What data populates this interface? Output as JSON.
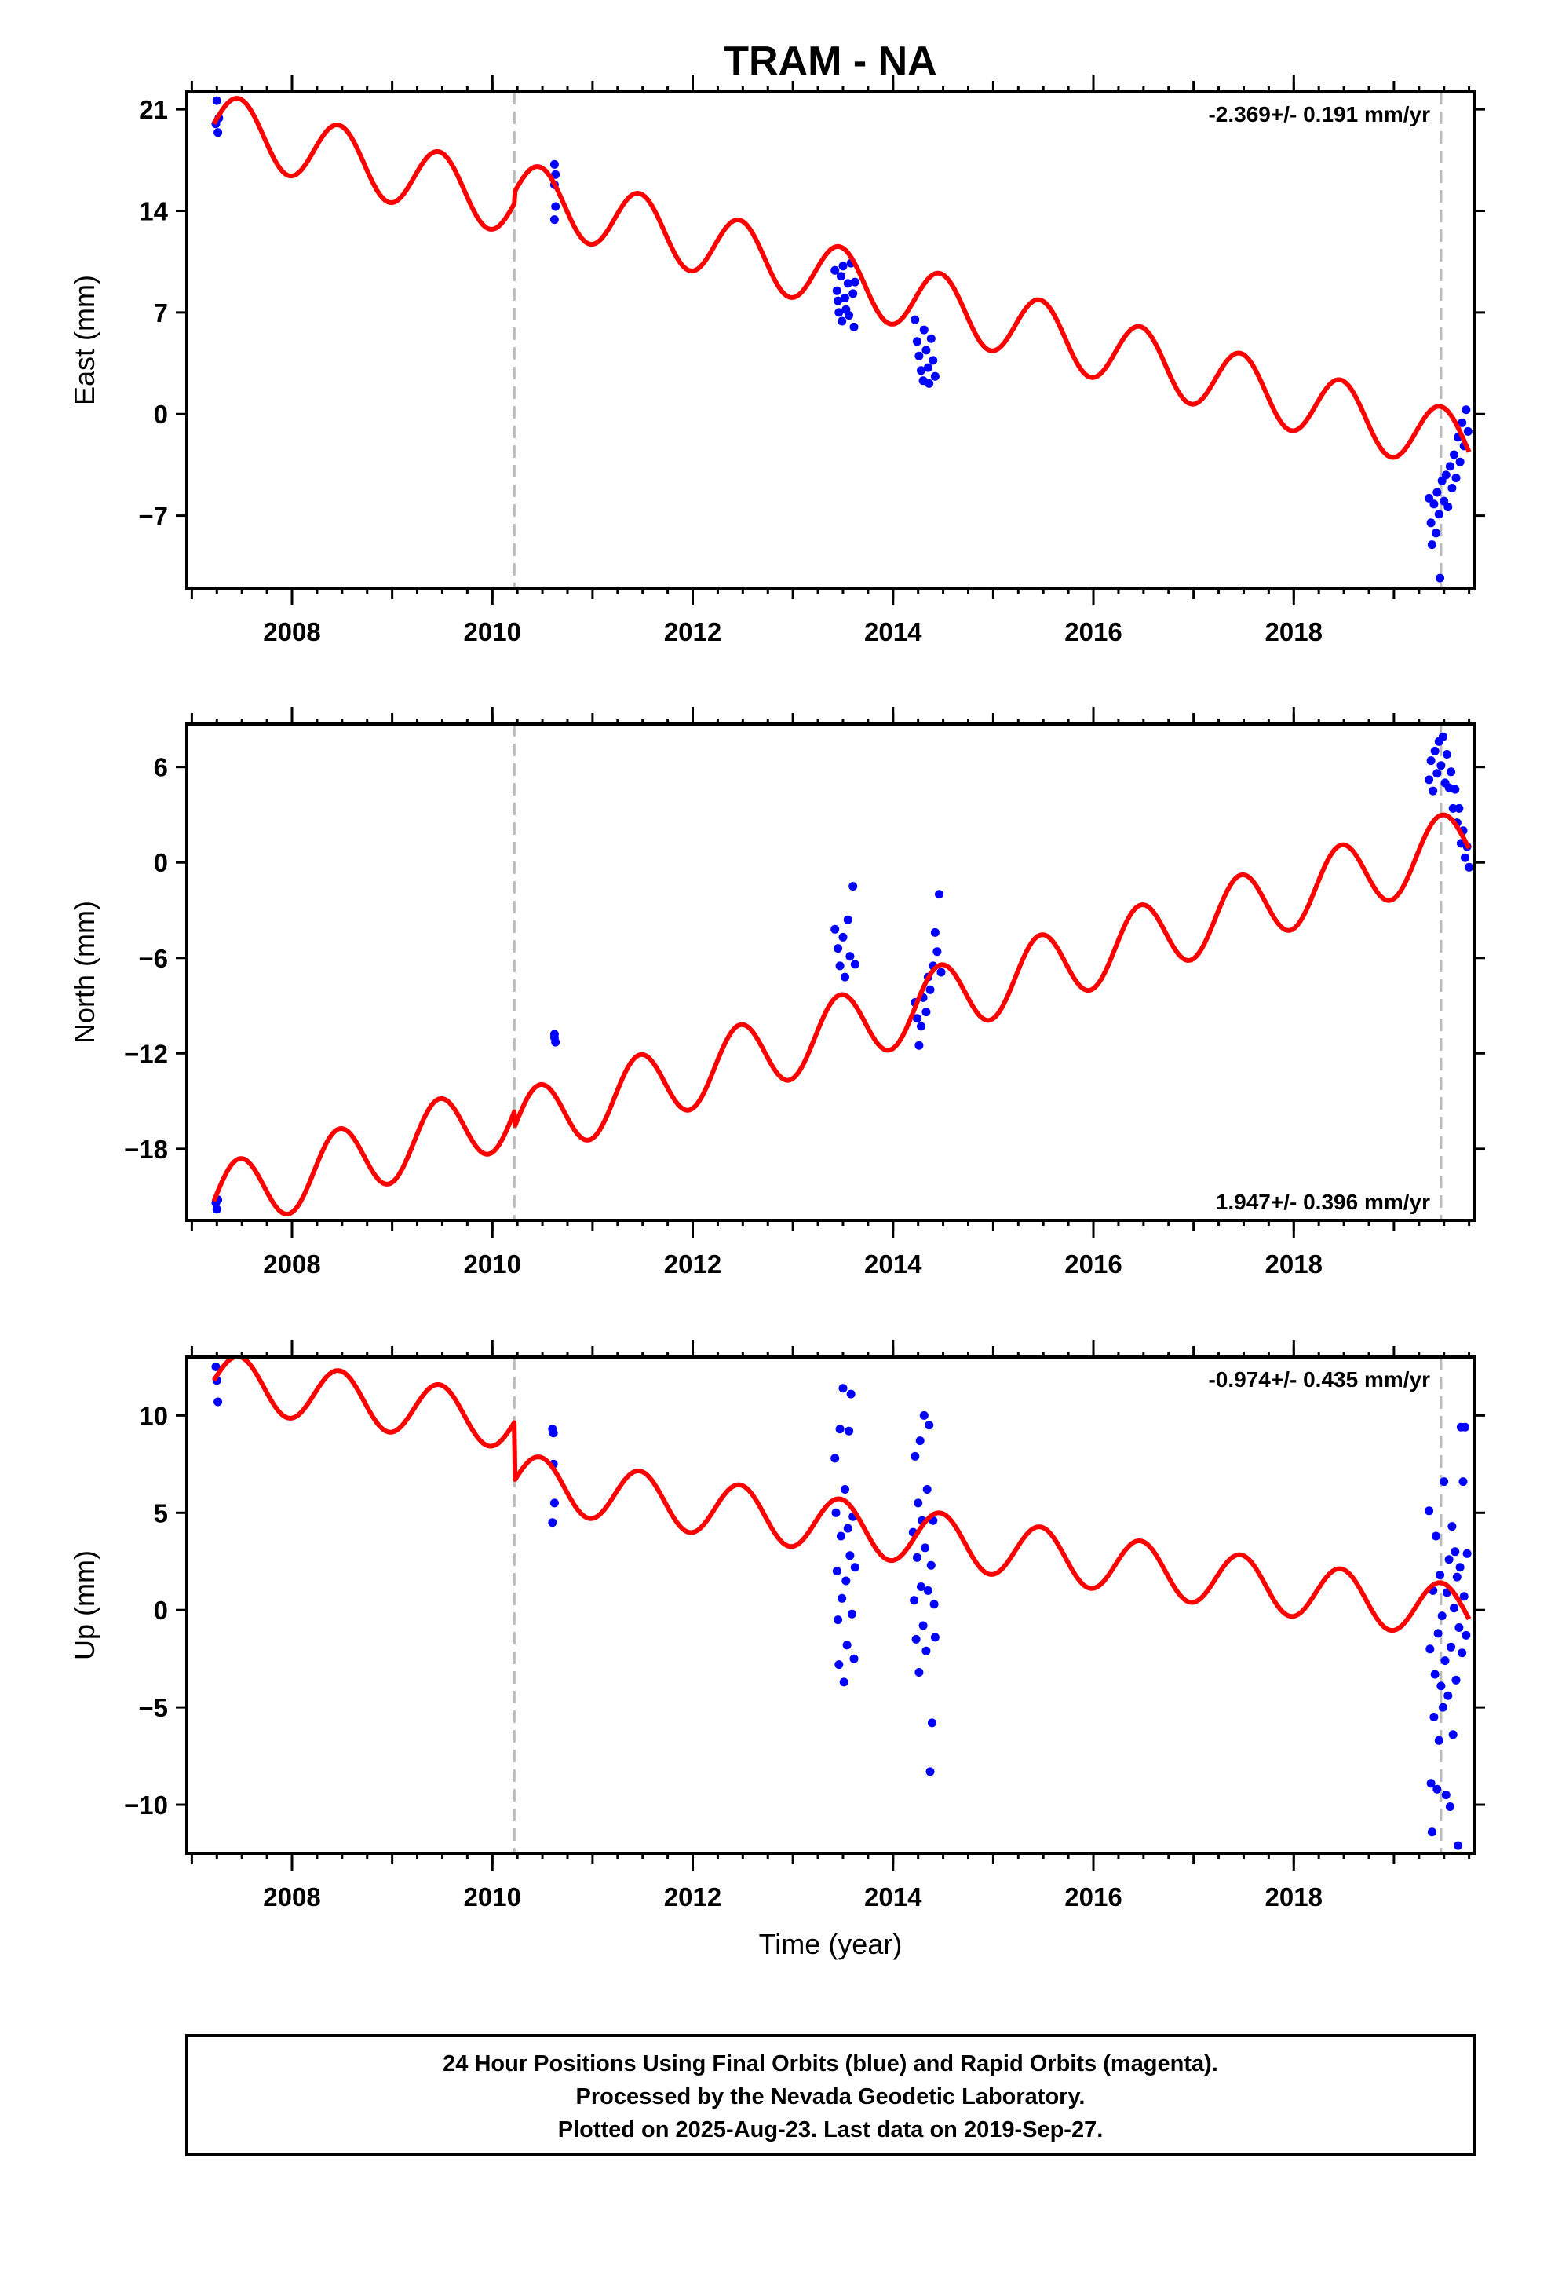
{
  "title": "TRAM - NA",
  "x_axis_label": "Time (year)",
  "footer": {
    "line1": "24 Hour Positions Using Final Orbits (blue) and Rapid Orbits (magenta).",
    "line2": "Processed by the Nevada Geodetic Laboratory.",
    "line3": "Plotted on 2025-Aug-23. Last data on 2019-Sep-27."
  },
  "colors": {
    "data": "#0000ff",
    "model": "#ff0000",
    "offset_line": "#bbbbbb",
    "axes": "#000000"
  },
  "chart_data": [
    {
      "type": "scatter",
      "ylabel": "East (mm)",
      "rate_label": "-2.369+/- 0.191 mm/yr",
      "rate_position": "top-right",
      "xlim": [
        2006.95,
        2019.8
      ],
      "ylim": [
        -12,
        22.2
      ],
      "yticks": [
        -7,
        0,
        7,
        14,
        21
      ],
      "ytick_labels": [
        "−7",
        "0",
        "7",
        "14",
        "21"
      ],
      "xticks": [
        2008,
        2010,
        2012,
        2014,
        2016,
        2018
      ],
      "xtick_labels": [
        "2008",
        "2010",
        "2012",
        "2014",
        "2016",
        "2018"
      ],
      "offset_epochs": [
        2010.22,
        2019.47
      ],
      "model": {
        "start": 2007.22,
        "start_value": 20.0,
        "end": 2019.75,
        "end_value": -2.2,
        "seasonal_amplitude": 2.2,
        "breaks": [
          {
            "at": 2010.22,
            "step": 0.8
          }
        ]
      },
      "series": [
        {
          "name": "",
          "points": [
            [
              2007.24,
              20.0
            ],
            [
              2007.25,
              21.6
            ],
            [
              2007.26,
              19.4
            ],
            [
              2007.27,
              20.4
            ],
            [
              2010.62,
              17.2
            ],
            [
              2010.63,
              16.5
            ],
            [
              2010.62,
              15.8
            ],
            [
              2010.63,
              14.3
            ],
            [
              2010.62,
              13.4
            ],
            [
              2013.42,
              9.9
            ],
            [
              2013.44,
              8.5
            ],
            [
              2013.45,
              7.8
            ],
            [
              2013.46,
              7.0
            ],
            [
              2013.48,
              9.5
            ],
            [
              2013.49,
              6.4
            ],
            [
              2013.5,
              10.2
            ],
            [
              2013.52,
              8.0
            ],
            [
              2013.53,
              7.2
            ],
            [
              2013.55,
              9.0
            ],
            [
              2013.56,
              6.8
            ],
            [
              2013.58,
              10.4
            ],
            [
              2013.6,
              8.3
            ],
            [
              2013.61,
              6.0
            ],
            [
              2013.62,
              9.1
            ],
            [
              2014.22,
              6.5
            ],
            [
              2014.24,
              5.0
            ],
            [
              2014.26,
              4.0
            ],
            [
              2014.28,
              3.0
            ],
            [
              2014.3,
              2.3
            ],
            [
              2014.31,
              5.8
            ],
            [
              2014.33,
              4.4
            ],
            [
              2014.35,
              3.2
            ],
            [
              2014.36,
              2.1
            ],
            [
              2014.38,
              5.2
            ],
            [
              2014.4,
              3.7
            ],
            [
              2014.42,
              2.6
            ],
            [
              2019.35,
              -5.8
            ],
            [
              2019.37,
              -7.5
            ],
            [
              2019.38,
              -9.0
            ],
            [
              2019.4,
              -6.2
            ],
            [
              2019.42,
              -8.2
            ],
            [
              2019.43,
              -5.4
            ],
            [
              2019.45,
              -6.9
            ],
            [
              2019.46,
              -11.3
            ],
            [
              2019.48,
              -4.6
            ],
            [
              2019.5,
              -6.0
            ],
            [
              2019.52,
              -4.2
            ],
            [
              2019.54,
              -6.4
            ],
            [
              2019.56,
              -3.6
            ],
            [
              2019.58,
              -5.1
            ],
            [
              2019.6,
              -2.8
            ],
            [
              2019.62,
              -4.4
            ],
            [
              2019.64,
              -1.6
            ],
            [
              2019.66,
              -3.3
            ],
            [
              2019.68,
              -0.6
            ],
            [
              2019.7,
              -2.2
            ],
            [
              2019.72,
              0.3
            ],
            [
              2019.74,
              -1.2
            ]
          ]
        }
      ]
    },
    {
      "type": "scatter",
      "ylabel": "North (mm)",
      "rate_label": "1.947+/- 0.396 mm/yr",
      "rate_position": "bottom-right",
      "xlim": [
        2006.95,
        2019.8
      ],
      "ylim": [
        -22.5,
        8.7
      ],
      "yticks": [
        -18,
        -12,
        -6,
        0,
        6
      ],
      "ytick_labels": [
        "−18",
        "−12",
        "−6",
        "0",
        "6"
      ],
      "xticks": [
        2008,
        2010,
        2012,
        2014,
        2016,
        2018
      ],
      "xtick_labels": [
        "2008",
        "2010",
        "2012",
        "2014",
        "2016",
        "2018"
      ],
      "offset_epochs": [
        2010.22,
        2019.47
      ],
      "model": {
        "start": 2007.22,
        "start_value": -21.3,
        "end": 2019.75,
        "end_value": 1.3,
        "seasonal_amplitude": 2.2,
        "breaks": [
          {
            "at": 2010.22,
            "step": -1.0
          }
        ]
      },
      "series": [
        {
          "name": "",
          "points": [
            [
              2007.24,
              -21.4
            ],
            [
              2007.25,
              -21.8
            ],
            [
              2007.26,
              -21.2
            ],
            [
              2010.62,
              -10.8
            ],
            [
              2010.63,
              -11.3
            ],
            [
              2010.62,
              -11.0
            ],
            [
              2013.42,
              -4.2
            ],
            [
              2013.45,
              -5.4
            ],
            [
              2013.47,
              -6.5
            ],
            [
              2013.5,
              -4.7
            ],
            [
              2013.52,
              -7.2
            ],
            [
              2013.55,
              -3.6
            ],
            [
              2013.57,
              -5.9
            ],
            [
              2013.6,
              -1.5
            ],
            [
              2013.62,
              -6.4
            ],
            [
              2014.22,
              -8.8
            ],
            [
              2014.24,
              -9.8
            ],
            [
              2014.26,
              -11.5
            ],
            [
              2014.28,
              -10.3
            ],
            [
              2014.3,
              -8.5
            ],
            [
              2014.33,
              -9.4
            ],
            [
              2014.35,
              -7.2
            ],
            [
              2014.37,
              -8.0
            ],
            [
              2014.4,
              -6.5
            ],
            [
              2014.42,
              -4.4
            ],
            [
              2014.44,
              -5.6
            ],
            [
              2014.46,
              -2.0
            ],
            [
              2014.48,
              -6.9
            ],
            [
              2019.35,
              5.2
            ],
            [
              2019.37,
              6.4
            ],
            [
              2019.39,
              4.5
            ],
            [
              2019.41,
              7.0
            ],
            [
              2019.43,
              5.6
            ],
            [
              2019.45,
              7.6
            ],
            [
              2019.47,
              6.1
            ],
            [
              2019.49,
              7.9
            ],
            [
              2019.51,
              5.0
            ],
            [
              2019.53,
              6.8
            ],
            [
              2019.55,
              4.7
            ],
            [
              2019.57,
              5.7
            ],
            [
              2019.59,
              3.4
            ],
            [
              2019.61,
              4.6
            ],
            [
              2019.63,
              2.5
            ],
            [
              2019.65,
              3.4
            ],
            [
              2019.67,
              1.2
            ],
            [
              2019.69,
              2.0
            ],
            [
              2019.71,
              0.3
            ],
            [
              2019.73,
              1.0
            ],
            [
              2019.75,
              -0.3
            ]
          ]
        }
      ]
    },
    {
      "type": "scatter",
      "ylabel": "Up (mm)",
      "rate_label": "-0.974+/- 0.435 mm/yr",
      "rate_position": "top-right",
      "xlim": [
        2006.95,
        2019.8
      ],
      "ylim": [
        -12.5,
        13.0
      ],
      "yticks": [
        -10,
        -5,
        0,
        5,
        10
      ],
      "ytick_labels": [
        "−10",
        "−5",
        "0",
        "5",
        "10"
      ],
      "xticks": [
        2008,
        2010,
        2012,
        2014,
        2016,
        2018
      ],
      "xtick_labels": [
        "2008",
        "2010",
        "2012",
        "2014",
        "2016",
        "2018"
      ],
      "offset_epochs": [
        2010.22,
        2019.47
      ],
      "model": {
        "start": 2007.22,
        "start_value": 11.8,
        "end": 2019.75,
        "end_value": -0.2,
        "seasonal_amplitude": 1.4,
        "breaks": [
          {
            "at": 2010.22,
            "step": -3.0
          }
        ]
      },
      "series": [
        {
          "name": "",
          "points": [
            [
              2007.24,
              12.5
            ],
            [
              2007.25,
              11.8
            ],
            [
              2007.26,
              10.7
            ],
            [
              2010.6,
              9.3
            ],
            [
              2010.61,
              7.5
            ],
            [
              2010.62,
              5.5
            ],
            [
              2010.6,
              4.5
            ],
            [
              2010.61,
              9.1
            ],
            [
              2013.42,
              7.8
            ],
            [
              2013.43,
              5.0
            ],
            [
              2013.44,
              2.0
            ],
            [
              2013.45,
              -0.5
            ],
            [
              2013.46,
              -2.8
            ],
            [
              2013.47,
              9.3
            ],
            [
              2013.48,
              3.8
            ],
            [
              2013.49,
              0.6
            ],
            [
              2013.5,
              11.4
            ],
            [
              2013.51,
              -3.7
            ],
            [
              2013.52,
              6.2
            ],
            [
              2013.53,
              1.5
            ],
            [
              2013.54,
              -1.8
            ],
            [
              2013.55,
              4.2
            ],
            [
              2013.56,
              9.2
            ],
            [
              2013.57,
              2.8
            ],
            [
              2013.58,
              11.1
            ],
            [
              2013.59,
              -0.2
            ],
            [
              2013.6,
              4.8
            ],
            [
              2013.61,
              -2.5
            ],
            [
              2013.62,
              2.2
            ],
            [
              2014.2,
              4.0
            ],
            [
              2014.21,
              0.5
            ],
            [
              2014.22,
              7.9
            ],
            [
              2014.23,
              -1.5
            ],
            [
              2014.24,
              2.7
            ],
            [
              2014.25,
              5.5
            ],
            [
              2014.26,
              -3.2
            ],
            [
              2014.27,
              8.7
            ],
            [
              2014.28,
              1.2
            ],
            [
              2014.29,
              4.6
            ],
            [
              2014.3,
              -0.8
            ],
            [
              2014.31,
              10.0
            ],
            [
              2014.32,
              3.2
            ],
            [
              2014.33,
              -2.1
            ],
            [
              2014.34,
              6.2
            ],
            [
              2014.35,
              1.0
            ],
            [
              2014.36,
              9.5
            ],
            [
              2014.37,
              -8.3
            ],
            [
              2014.38,
              2.3
            ],
            [
              2014.39,
              -5.8
            ],
            [
              2014.4,
              4.6
            ],
            [
              2014.41,
              0.3
            ],
            [
              2014.42,
              -1.4
            ],
            [
              2019.35,
              5.1
            ],
            [
              2019.36,
              -2.0
            ],
            [
              2019.37,
              -8.9
            ],
            [
              2019.38,
              -11.4
            ],
            [
              2019.39,
              1.0
            ],
            [
              2019.4,
              -5.5
            ],
            [
              2019.41,
              -3.3
            ],
            [
              2019.42,
              3.8
            ],
            [
              2019.43,
              -9.2
            ],
            [
              2019.44,
              -1.2
            ],
            [
              2019.45,
              -6.7
            ],
            [
              2019.46,
              1.8
            ],
            [
              2019.47,
              -3.9
            ],
            [
              2019.48,
              -0.3
            ],
            [
              2019.49,
              -5.0
            ],
            [
              2019.5,
              6.6
            ],
            [
              2019.51,
              -2.6
            ],
            [
              2019.52,
              -9.5
            ],
            [
              2019.53,
              0.9
            ],
            [
              2019.54,
              -4.4
            ],
            [
              2019.55,
              2.6
            ],
            [
              2019.56,
              -10.1
            ],
            [
              2019.57,
              -1.9
            ],
            [
              2019.58,
              4.3
            ],
            [
              2019.59,
              -6.4
            ],
            [
              2019.6,
              0.1
            ],
            [
              2019.61,
              3.0
            ],
            [
              2019.62,
              -3.6
            ],
            [
              2019.63,
              1.7
            ],
            [
              2019.64,
              -12.1
            ],
            [
              2019.65,
              -0.9
            ],
            [
              2019.66,
              2.2
            ],
            [
              2019.67,
              9.4
            ],
            [
              2019.68,
              -2.2
            ],
            [
              2019.69,
              6.6
            ],
            [
              2019.7,
              0.7
            ],
            [
              2019.71,
              9.4
            ],
            [
              2019.72,
              -1.3
            ],
            [
              2019.73,
              2.9
            ]
          ]
        }
      ]
    }
  ]
}
